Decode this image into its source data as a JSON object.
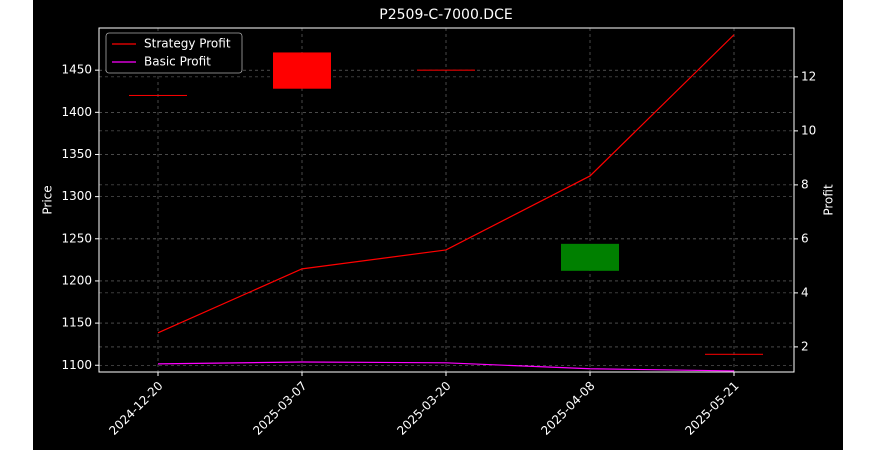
{
  "chart_data": {
    "type": "candlestick",
    "title": "P2509-C-7000.DCE",
    "y_label": "Price",
    "y2_label": "Profit",
    "categories": [
      "2024-12-20",
      "2025-03-07",
      "2025-03-20",
      "2025-04-08",
      "2025-05-21"
    ],
    "open": [
      1420,
      1428,
      1450,
      1244,
      1113
    ],
    "close": [
      1420,
      1471,
      1450,
      1212,
      1113
    ],
    "up_color": "#ff0000",
    "down_color": "#008000",
    "series": [
      {
        "name": "Strategy Profit",
        "color": "#ff0000",
        "axis": "y2",
        "values": [
          2.52,
          4.89,
          5.59,
          8.33,
          13.56
        ]
      },
      {
        "name": "Basic Profit",
        "color": "#ff00ff",
        "axis": "y2",
        "values": [
          1.37,
          1.44,
          1.41,
          1.19,
          1.11
        ]
      }
    ],
    "ylim": [
      1092,
      1500
    ],
    "yticks": [
      1100,
      1150,
      1200,
      1250,
      1300,
      1350,
      1400,
      1450
    ],
    "y2lim": [
      1.07,
      13.81
    ],
    "y2ticks": [
      2,
      4,
      6,
      8,
      10,
      12
    ],
    "grid": true,
    "legend": "upper left"
  }
}
